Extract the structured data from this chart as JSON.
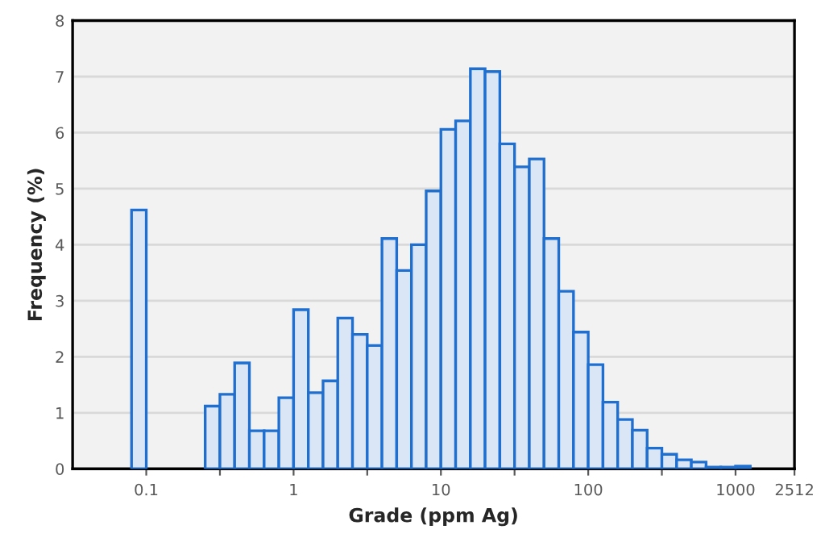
{
  "chart_data": {
    "type": "histogram",
    "xlabel": "Grade (ppm Ag)",
    "ylabel": "Frequency (%)",
    "bins": [
      0.07943,
      0.1,
      0.1259,
      0.1585,
      0.1995,
      0.2512,
      0.3162,
      0.3981,
      0.5012,
      0.631,
      0.7943,
      1,
      1.259,
      1.585,
      1.995,
      2.512,
      3.162,
      3.981,
      5.012,
      6.31,
      7.943,
      10,
      12.59,
      15.85,
      19.95,
      25.12,
      31.62,
      39.81,
      50.12,
      63.1,
      79.43,
      100,
      125.9,
      158.5,
      199.5,
      251.2,
      316.2,
      398.1,
      501.2,
      631,
      794.3,
      1000,
      1259
    ],
    "values": [
      4.62,
      null,
      null,
      null,
      null,
      1.12,
      1.33,
      1.89,
      0.68,
      0.68,
      1.27,
      2.84,
      1.36,
      1.57,
      2.69,
      2.4,
      2.2,
      4.11,
      3.54,
      4.0,
      4.96,
      6.06,
      6.21,
      7.14,
      7.09,
      5.8,
      5.39,
      5.53,
      4.11,
      3.17,
      2.44,
      1.86,
      1.19,
      0.88,
      0.69,
      0.37,
      0.26,
      0.16,
      0.12,
      0.03,
      0.03,
      0.05
    ],
    "color": "#dae5f5",
    "log": "x",
    "xlim": [
      0.03162,
      2512
    ],
    "xticks": [
      {
        "value": 0.1,
        "label": "0.1"
      },
      {
        "value": 0.3162,
        "label": null
      },
      {
        "value": 1,
        "label": "1"
      },
      {
        "value": 3.162,
        "label": null
      },
      {
        "value": 10,
        "label": "10"
      },
      {
        "value": 31.62,
        "label": null
      },
      {
        "value": 100,
        "label": "100"
      },
      {
        "value": 316.2,
        "label": null
      },
      {
        "value": 1000,
        "label": "1000"
      },
      2512
    ],
    "ylim": [
      0,
      8
    ],
    "yticks": [
      0,
      1,
      2,
      3,
      4,
      5,
      6,
      7,
      8
    ],
    "grid": "y"
  }
}
